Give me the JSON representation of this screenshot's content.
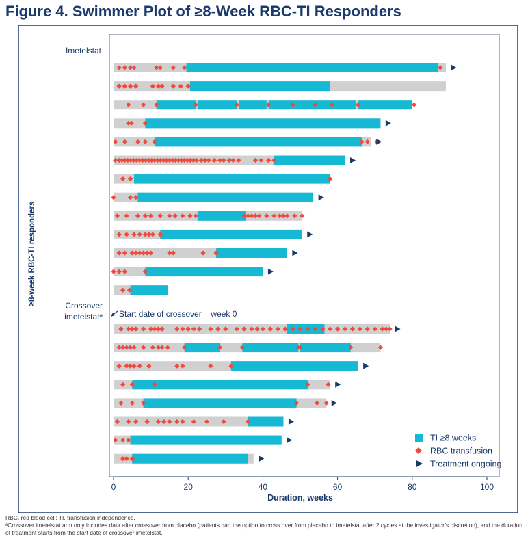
{
  "title": "Figure 4. Swimmer Plot of ≥8-Week RBC-TI Responders",
  "footnotes": {
    "abbrev": "RBC, red blood cell; TI, transfusion independence.",
    "a": "ᵃCrossover imetelstat arm only includes data after crossover from placebo (patients had the option to cross over from placebo to imetelstat after 2 cycles at the investigator’s discretion), and the duration of treatment starts from the start date of crossover imetelstat."
  },
  "chart_data": {
    "type": "swimmer",
    "xlabel": "Duration, weeks",
    "ylabel": "≥8-week RBC-TI responders",
    "xlim": [
      0,
      100
    ],
    "xticks": [
      0,
      20,
      40,
      60,
      80,
      100
    ],
    "colors": {
      "bar": "#d0d0d0",
      "ti": "#16b9d4",
      "transfusion": "#f04a3c",
      "ongoing": "#1a3a6b",
      "axis": "#1a3a6b"
    },
    "legend": {
      "position": "bottom-right",
      "items": [
        {
          "label": "TI ≥8 weeks",
          "symbol": "square"
        },
        {
          "label": "RBC transfusion",
          "symbol": "diamond"
        },
        {
          "label": "Treatment ongoing",
          "symbol": "triangle"
        }
      ]
    },
    "annotation": {
      "text": "Start date of crossover = week 0",
      "group": "Crossover imetelstat"
    },
    "groups": [
      {
        "label": "Imetelstat",
        "patients": [
          {
            "duration": 89,
            "ti": [
              [
                19.5,
                87
              ]
            ],
            "transfusions": [
              1.5,
              3,
              4.5,
              5.5,
              11.5,
              12.5,
              16,
              19,
              87.5
            ],
            "ongoing": true
          },
          {
            "duration": 89,
            "ti": [
              [
                20.5,
                58
              ]
            ],
            "transfusions": [
              1.5,
              3,
              4.5,
              6,
              10.5,
              12,
              13,
              16,
              18,
              20
            ],
            "ongoing": false
          },
          {
            "duration": 80,
            "ti": [
              [
                11.5,
                22
              ],
              [
                22.5,
                33
              ],
              [
                33.5,
                41
              ],
              [
                41.5,
                65
              ],
              [
                65.5,
                80
              ]
            ],
            "transfusions": [
              4,
              8,
              11.5,
              22,
              33,
              41.5,
              48,
              54,
              58.5,
              65.5,
              80.5
            ],
            "ongoing": false
          },
          {
            "duration": 71.5,
            "ti": [
              [
                8.5,
                71.5
              ]
            ],
            "transfusions": [
              4,
              4.8,
              8.5
            ],
            "ongoing": true
          },
          {
            "duration": 69,
            "ti": [
              [
                11,
                66.5
              ]
            ],
            "transfusions": [
              0.5,
              3,
              6.5,
              8.5,
              11,
              66.5,
              68,
              70.5
            ],
            "ongoing": true
          },
          {
            "duration": 62,
            "ti": [
              [
                43,
                62
              ]
            ],
            "transfusions": [
              0.5,
              1.5,
              2.3,
              3,
              3.8,
              4.6,
              5.4,
              6.2,
              7,
              7.8,
              8.6,
              9.4,
              10.2,
              11,
              11.8,
              12.6,
              13.4,
              14.2,
              15,
              15.8,
              16.6,
              17.4,
              18.2,
              19,
              19.8,
              20.6,
              21.4,
              22.2,
              23.5,
              24.5,
              25.5,
              27,
              28.5,
              29.5,
              31,
              32,
              33.5,
              38,
              39.5,
              41.5,
              43
            ],
            "ongoing": true
          },
          {
            "duration": 58,
            "ti": [
              [
                5.5,
                58
              ]
            ],
            "transfusions": [
              2.5,
              4.5,
              58
            ],
            "ongoing": false
          },
          {
            "duration": 53.5,
            "ti": [
              [
                6.5,
                53.5
              ]
            ],
            "transfusions": [
              0,
              4.5,
              6
            ],
            "ongoing": true
          },
          {
            "duration": 50.5,
            "ti": [
              [
                22.5,
                35.5
              ]
            ],
            "transfusions": [
              1,
              3.5,
              6.5,
              8.5,
              10,
              12.5,
              15,
              16.5,
              18.5,
              20.5,
              22,
              35,
              36,
              37,
              38,
              39,
              41,
              43,
              44.5,
              45.5,
              46.5,
              48.5,
              50.5
            ],
            "ongoing": false
          },
          {
            "duration": 50.5,
            "ti": [
              [
                12.5,
                50.5
              ]
            ],
            "transfusions": [
              1.5,
              3.5,
              5.5,
              7,
              8.5,
              9.5,
              10.5,
              12.5
            ],
            "ongoing": true
          },
          {
            "duration": 46.5,
            "ti": [
              [
                27.5,
                46.5
              ]
            ],
            "transfusions": [
              1.5,
              3,
              5,
              6,
              7,
              8,
              9,
              10,
              15,
              16,
              24,
              27.5
            ],
            "ongoing": true
          },
          {
            "duration": 40,
            "ti": [
              [
                8.5,
                40
              ]
            ],
            "transfusions": [
              0,
              1.5,
              3,
              8.5
            ],
            "ongoing": true
          },
          {
            "duration": 14.5,
            "ti": [
              [
                4.5,
                14.5
              ]
            ],
            "transfusions": [
              2.5,
              4.3
            ],
            "ongoing": false
          }
        ]
      },
      {
        "label": "Crossover imetelstatᵃ",
        "patients": [
          {
            "duration": 74,
            "ti": [
              [
                46.5,
                56.5
              ]
            ],
            "transfusions": [
              2,
              4,
              5,
              6,
              8,
              10,
              11,
              12,
              13,
              17,
              18.5,
              20,
              21.5,
              23,
              26,
              28,
              30,
              33,
              35,
              37,
              38.5,
              40,
              42,
              44,
              46,
              48,
              50,
              52,
              54,
              56,
              58,
              60,
              62,
              64,
              66,
              68,
              70,
              72,
              73,
              74
            ],
            "ongoing": true
          },
          {
            "duration": 71.5,
            "ti": [
              [
                19,
                28.5
              ],
              [
                34.5,
                49.5
              ],
              [
                50,
                63.5
              ]
            ],
            "transfusions": [
              1.5,
              2.5,
              3.5,
              4.5,
              5.5,
              8,
              10.5,
              12,
              13,
              14.5,
              19,
              28.5,
              34.5,
              49.5,
              50,
              63.5,
              71.5
            ],
            "ongoing": false
          },
          {
            "duration": 65.5,
            "ti": [
              [
                31.5,
                65.5
              ]
            ],
            "transfusions": [
              1.5,
              3.5,
              4.5,
              5.5,
              7,
              9.5,
              17,
              18.5,
              26,
              31.5
            ],
            "ongoing": true
          },
          {
            "duration": 58,
            "ti": [
              [
                5,
                52
              ]
            ],
            "transfusions": [
              2.5,
              5,
              11,
              52,
              57.5
            ],
            "ongoing": true
          },
          {
            "duration": 57,
            "ti": [
              [
                8,
                49
              ]
            ],
            "transfusions": [
              2,
              5,
              8,
              49,
              54.5,
              57
            ],
            "ongoing": true
          },
          {
            "duration": 45.5,
            "ti": [
              [
                36,
                45.5
              ]
            ],
            "transfusions": [
              1,
              4,
              6,
              9,
              12,
              13.5,
              15,
              17,
              18.5,
              21.5,
              25,
              29.5,
              36
            ],
            "ongoing": true
          },
          {
            "duration": 45,
            "ti": [
              [
                4.5,
                45
              ]
            ],
            "transfusions": [
              0.5,
              2.5,
              4
            ],
            "ongoing": true
          },
          {
            "duration": 37.5,
            "ti": [
              [
                5,
                36
              ]
            ],
            "transfusions": [
              2.5,
              3.5,
              5
            ],
            "ongoing": true
          }
        ]
      }
    ]
  }
}
